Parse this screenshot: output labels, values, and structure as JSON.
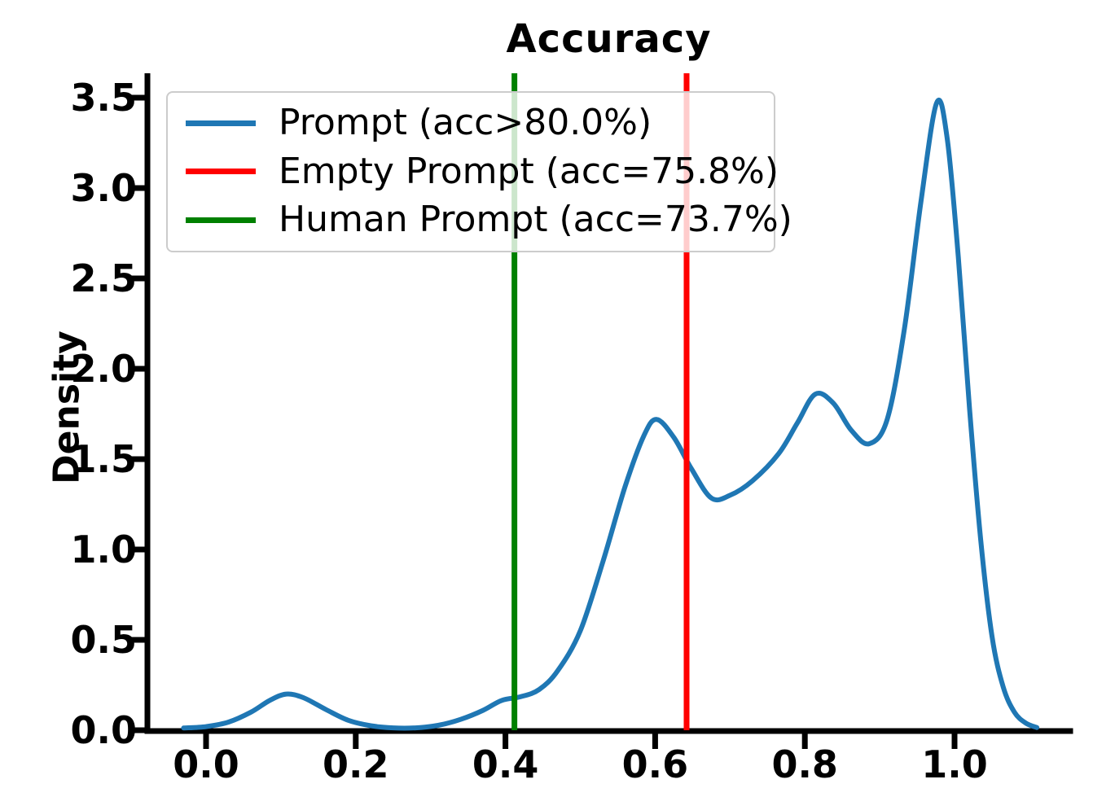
{
  "title": "Accuracy",
  "ylabel": "Density",
  "legend": {
    "items": [
      {
        "label": "Prompt (acc>80.0%)",
        "color": "#1f77b4"
      },
      {
        "label": "Empty Prompt (acc=75.8%)",
        "color": "#ff0000"
      },
      {
        "label": "Human Prompt (acc=73.7%)",
        "color": "#008000"
      }
    ]
  },
  "chart_data": {
    "type": "line",
    "subtype": "kde-density",
    "title": "Accuracy",
    "xlabel": "",
    "ylabel": "Density",
    "xlim": [
      -0.08,
      1.16
    ],
    "ylim": [
      0,
      3.63
    ],
    "xticks": [
      0.0,
      0.2,
      0.4,
      0.6,
      0.8,
      1.0
    ],
    "yticks": [
      0.0,
      0.5,
      1.0,
      1.5,
      2.0,
      2.5,
      3.0,
      3.5
    ],
    "grid": false,
    "legend_position": "upper left",
    "series": [
      {
        "name": "Prompt (acc>80.0%)",
        "color": "#1f77b4",
        "points": [
          [
            -0.03,
            0.012
          ],
          [
            0.0,
            0.02
          ],
          [
            0.03,
            0.045
          ],
          [
            0.06,
            0.1
          ],
          [
            0.085,
            0.165
          ],
          [
            0.107,
            0.2
          ],
          [
            0.13,
            0.18
          ],
          [
            0.16,
            0.115
          ],
          [
            0.19,
            0.055
          ],
          [
            0.22,
            0.025
          ],
          [
            0.25,
            0.013
          ],
          [
            0.28,
            0.013
          ],
          [
            0.31,
            0.027
          ],
          [
            0.34,
            0.06
          ],
          [
            0.37,
            0.11
          ],
          [
            0.395,
            0.165
          ],
          [
            0.42,
            0.185
          ],
          [
            0.445,
            0.225
          ],
          [
            0.47,
            0.33
          ],
          [
            0.5,
            0.55
          ],
          [
            0.53,
            0.93
          ],
          [
            0.56,
            1.35
          ],
          [
            0.585,
            1.63
          ],
          [
            0.602,
            1.72
          ],
          [
            0.625,
            1.62
          ],
          [
            0.648,
            1.45
          ],
          [
            0.675,
            1.285
          ],
          [
            0.7,
            1.3
          ],
          [
            0.73,
            1.38
          ],
          [
            0.765,
            1.53
          ],
          [
            0.79,
            1.7
          ],
          [
            0.814,
            1.86
          ],
          [
            0.838,
            1.81
          ],
          [
            0.862,
            1.66
          ],
          [
            0.886,
            1.585
          ],
          [
            0.91,
            1.72
          ],
          [
            0.933,
            2.22
          ],
          [
            0.955,
            2.92
          ],
          [
            0.976,
            3.47
          ],
          [
            0.99,
            3.28
          ],
          [
            1.005,
            2.62
          ],
          [
            1.02,
            1.78
          ],
          [
            1.035,
            1.05
          ],
          [
            1.05,
            0.52
          ],
          [
            1.065,
            0.24
          ],
          [
            1.08,
            0.1
          ],
          [
            1.095,
            0.04
          ],
          [
            1.11,
            0.015
          ]
        ]
      }
    ],
    "vlines": [
      {
        "name": "Empty Prompt (acc=75.8%)",
        "x": 0.642,
        "color": "#ff0000"
      },
      {
        "name": "Human Prompt (acc=73.7%)",
        "x": 0.412,
        "color": "#008000"
      }
    ]
  }
}
